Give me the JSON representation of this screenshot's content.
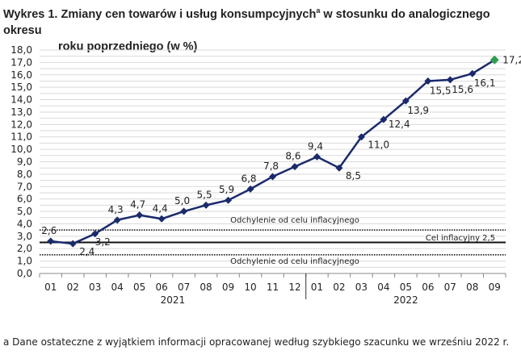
{
  "title_line1": "Wykres 1. Zmiany cen towarów i usług konsumpcyjnych",
  "title_sup": "a",
  "title_line1_rest": " w stosunku do analogicznego okresu",
  "title_line2": "roku poprzedniego (w %)",
  "footnote": "a Dane ostateczne z wyjątkiem informacji opracowanej według szybkiego szacunku we wrześniu 2022 r.",
  "chart_data": {
    "type": "line",
    "categories": [
      "01",
      "02",
      "03",
      "04",
      "05",
      "06",
      "07",
      "08",
      "09",
      "10",
      "11",
      "12",
      "01",
      "02",
      "03",
      "04",
      "05",
      "06",
      "07",
      "08",
      "09"
    ],
    "year_groups": [
      {
        "label": "2021",
        "count": 12
      },
      {
        "label": "2022",
        "count": 9
      }
    ],
    "values": [
      2.6,
      2.4,
      3.2,
      4.3,
      4.7,
      4.4,
      5.0,
      5.5,
      5.9,
      6.8,
      7.8,
      8.6,
      9.4,
      8.5,
      11.0,
      12.4,
      13.9,
      15.5,
      15.6,
      16.1,
      17.2
    ],
    "value_labels": [
      "2,6",
      "2,4",
      "3,2",
      "4,3",
      "4,7",
      "4,4",
      "5,0",
      "5,5",
      "5,9",
      "6,8",
      "7,8",
      "8,6",
      "9,4",
      "8,5",
      "11,0",
      "12,4",
      "13,9",
      "15,5",
      "15,6",
      "16,1",
      "17,2"
    ],
    "ylim": [
      0,
      18
    ],
    "yticks": [
      "0,0",
      "1,0",
      "2,0",
      "3,0",
      "4,0",
      "5,0",
      "6,0",
      "7,0",
      "8,0",
      "9,0",
      "10,0",
      "11,0",
      "12,0",
      "13,0",
      "14,0",
      "15,0",
      "16,0",
      "17,0",
      "18,0"
    ],
    "grid": true,
    "reference_lines": [
      {
        "value": 3.5,
        "style": "dotted",
        "label": "Odchylenie od celu inflacyjnego"
      },
      {
        "value": 2.5,
        "style": "solid",
        "label": "Cel inflacyjny 2,5"
      },
      {
        "value": 1.5,
        "style": "dotted",
        "label": "Odchylenie od celu inflacyjnego"
      }
    ],
    "colors": {
      "line": "#1a2a6c",
      "last_point": "#2e9e4f",
      "grid": "#d9d9d9"
    }
  }
}
